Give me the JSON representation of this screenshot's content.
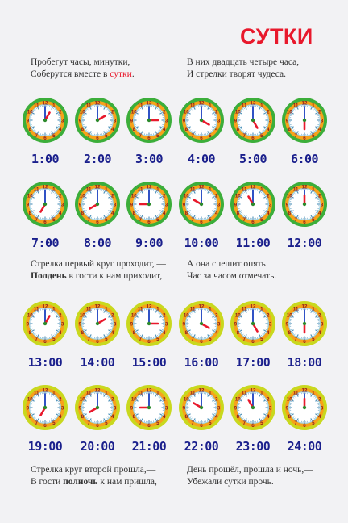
{
  "title": "СУТКИ",
  "verses": {
    "v1": {
      "left": [
        "Пробегут часы, минутки,",
        "Соберутся вместе в ",
        "сутки",
        "."
      ],
      "right": [
        "В них двадцать четыре часа,",
        "И стрелки творят чудеса."
      ]
    },
    "v2": {
      "left": [
        "Стрелка первый круг проходит, —",
        "Полдень",
        " в гости к нам приходит,"
      ],
      "right": [
        "А она спешит опять",
        "Час за часом отмечать."
      ]
    },
    "v3": {
      "left": [
        "Стрелка круг второй прошла,—",
        "В гости ",
        "полночь",
        " к нам пришла,"
      ],
      "right": [
        "День прошёл, прошла и ночь,—",
        "Убежали сутки прочь."
      ]
    }
  },
  "clocks": [
    {
      "label": "1:00",
      "hour": 1
    },
    {
      "label": "2:00",
      "hour": 2
    },
    {
      "label": "3:00",
      "hour": 3
    },
    {
      "label": "4:00",
      "hour": 4
    },
    {
      "label": "5:00",
      "hour": 5
    },
    {
      "label": "6:00",
      "hour": 6
    },
    {
      "label": "7:00",
      "hour": 7
    },
    {
      "label": "8:00",
      "hour": 8
    },
    {
      "label": "9:00",
      "hour": 9
    },
    {
      "label": "10:00",
      "hour": 10
    },
    {
      "label": "11:00",
      "hour": 11
    },
    {
      "label": "12:00",
      "hour": 12
    },
    {
      "label": "13:00",
      "hour": 13
    },
    {
      "label": "14:00",
      "hour": 14
    },
    {
      "label": "15:00",
      "hour": 15
    },
    {
      "label": "16:00",
      "hour": 16
    },
    {
      "label": "17:00",
      "hour": 17
    },
    {
      "label": "18:00",
      "hour": 18
    },
    {
      "label": "19:00",
      "hour": 19
    },
    {
      "label": "20:00",
      "hour": 20
    },
    {
      "label": "21:00",
      "hour": 21
    },
    {
      "label": "22:00",
      "hour": 22
    },
    {
      "label": "23:00",
      "hour": 23
    },
    {
      "label": "24:00",
      "hour": 24
    }
  ],
  "colors": {
    "title": "#e8192c",
    "time_label": "#1a1f8c",
    "day_ring": "#3cae3a",
    "night_ring": "#c9d81e",
    "hour_hand": "#e8192c",
    "minute_hand": "#1a3fbf"
  }
}
